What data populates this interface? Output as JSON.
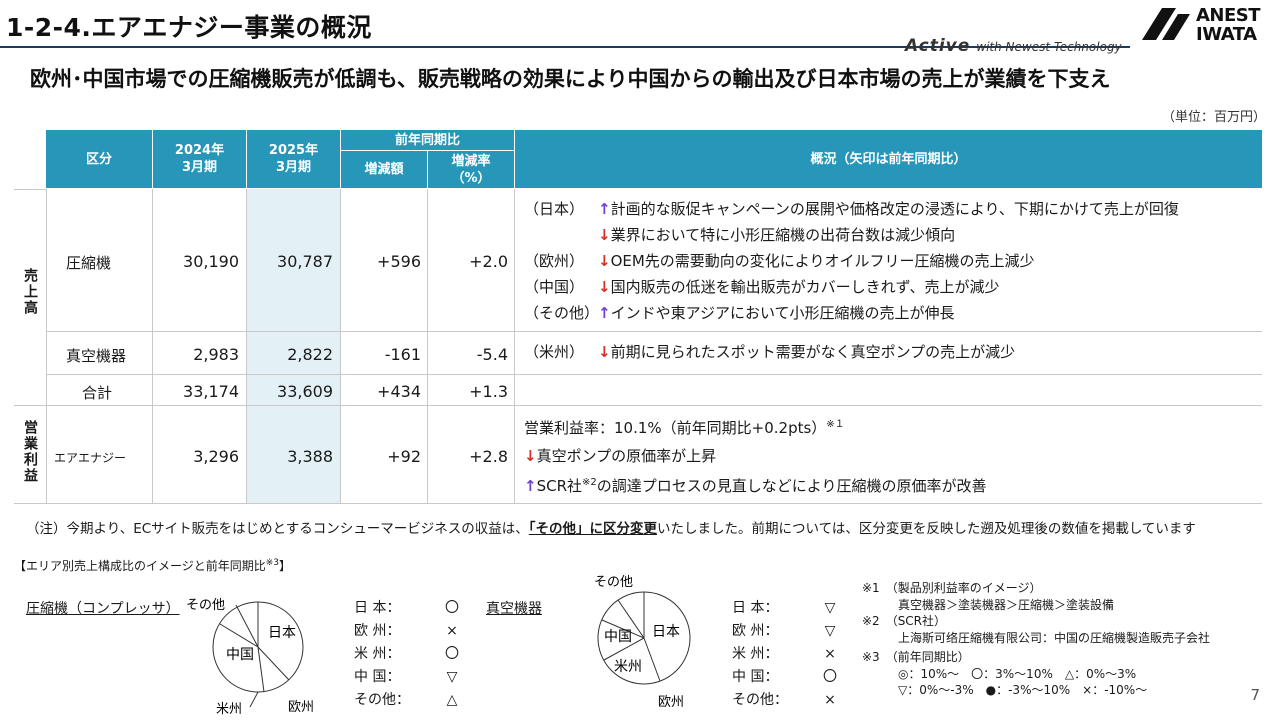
{
  "header": {
    "title": "1-2-4.エアエナジー事業の概況",
    "tagline_brand": "Active",
    "tagline_text": "with Newest Technology",
    "logo_line1": "ANEST",
    "logo_line2": "IWATA"
  },
  "headline": "欧州･中国市場での圧縮機販売が低調も、販売戦略の効果により中国からの輸出及び日本市場の売上が業績を下支え",
  "unit": "（単位：百万円）",
  "table": {
    "headers": {
      "category": "区分",
      "fy2024": "2024年\n3月期",
      "fy2025": "2025年\n3月期",
      "yoy_group": "前年同期比",
      "change_amount": "増減額",
      "change_rate": "増減率\n（%）",
      "overview": "概況（矢印は前年同期比）"
    },
    "sales_label": "売上高",
    "op_label": "営業利益",
    "rows": [
      {
        "name": "圧縮機",
        "fy2024": "30,190",
        "fy2025": "30,787",
        "diff": "+596",
        "rate": "+2.0"
      },
      {
        "name": "真空機器",
        "fy2024": "2,983",
        "fy2025": "2,822",
        "diff": "-161",
        "rate": "-5.4"
      },
      {
        "name": "合計",
        "fy2024": "33,174",
        "fy2025": "33,609",
        "diff": "+434",
        "rate": "+1.3"
      },
      {
        "name": "エアエナジー",
        "fy2024": "3,296",
        "fy2025": "3,388",
        "diff": "+92",
        "rate": "+2.8"
      }
    ],
    "compressor_desc": [
      {
        "region": "（日本）",
        "arrow": "↑",
        "dir": "up",
        "text": "計画的な販促キャンペーンの展開や価格改定の浸透により、下期にかけて売上が回復"
      },
      {
        "region": "",
        "arrow": "↓",
        "dir": "down",
        "text": "業界において特に小形圧縮機の出荷台数は減少傾向"
      },
      {
        "region": "（欧州）",
        "arrow": "↓",
        "dir": "down",
        "text": "OEM先の需要動向の変化によりオイルフリー圧縮機の売上減少"
      },
      {
        "region": "（中国）",
        "arrow": "↓",
        "dir": "down",
        "text": "国内販売の低迷を輸出販売がカバーしきれず、売上が減少"
      },
      {
        "region": "（その他）",
        "arrow": "↑",
        "dir": "up",
        "text": "インドや東アジアにおいて小形圧縮機の売上が伸長"
      }
    ],
    "vacuum_desc": {
      "region": "（米州）",
      "arrow": "↓",
      "dir": "down",
      "text": "前期に見られたスポット需要がなく真空ポンプの売上が減少"
    },
    "op_desc": {
      "margin": "営業利益率：10.1%（前年同期比+0.2pts）",
      "margin_note": "※１",
      "line1_arrow": "↓",
      "line1": "真空ポンプの原価率が上昇",
      "line2_arrow": "↑",
      "line2_a": "SCR社",
      "line2_sup": "※2",
      "line2_b": "の調達プロセスの見直しなどにより圧縮機の原価率が改善"
    }
  },
  "note": {
    "prefix": "（注）今期より、ECサイト販売をはじめとするコンシューマービジネスの収益は、",
    "emphasis": "「その他」に区分変更",
    "suffix": "いたしました。前期については、区分変更を反映した遡及処理後の数値を掲載しています"
  },
  "lower": {
    "title": "【エリア別売上構成比のイメージと前年同期比",
    "title_sup": "※3",
    "title_end": "】",
    "compressor_label": "圧縮機（コンプレッサ）",
    "vacuum_label": "真空機器",
    "compressor_pie": {
      "japan": "日本",
      "china": "中国",
      "americas": "米州",
      "europe": "欧州",
      "other": "その他"
    },
    "vacuum_pie": {
      "japan": "日本",
      "china": "中国",
      "americas": "米州",
      "europe": "欧州",
      "other": "その他"
    },
    "compressor_marks": [
      {
        "region": "日 本：",
        "mark": "〇"
      },
      {
        "region": "欧 州：",
        "mark": "×"
      },
      {
        "region": "米 州：",
        "mark": "〇"
      },
      {
        "region": "中 国：",
        "mark": "▽"
      },
      {
        "region": "その他：",
        "mark": "△"
      }
    ],
    "vacuum_marks": [
      {
        "region": "日 本：",
        "mark": "▽"
      },
      {
        "region": "欧 州：",
        "mark": "▽"
      },
      {
        "region": "米 州：",
        "mark": "×"
      },
      {
        "region": "中 国：",
        "mark": "〇"
      },
      {
        "region": "その他：",
        "mark": "×"
      }
    ],
    "footnotes": {
      "n1": "※1　（製品別利益率のイメージ）",
      "n1b": "真空機器＞塗装機器＞圧縮機＞塗装設備",
      "n2": "※2　（SCR社）",
      "n2b": "上海斯可络圧縮機有限公司：中国の圧縮機製造販売子会社",
      "n3": "※3　（前年同期比）",
      "n3b": "◎：10%～　〇：3%～10%　△：0%～3%",
      "n3c": "▽：0%～-3%　●：-3%～10%　×：-10%～"
    }
  },
  "page_number": "7",
  "colors": {
    "header_blue": "#2696b9",
    "highlight": "#e3f1f7",
    "up_arrow": "#6f3fd6",
    "down_arrow": "#d23228"
  }
}
